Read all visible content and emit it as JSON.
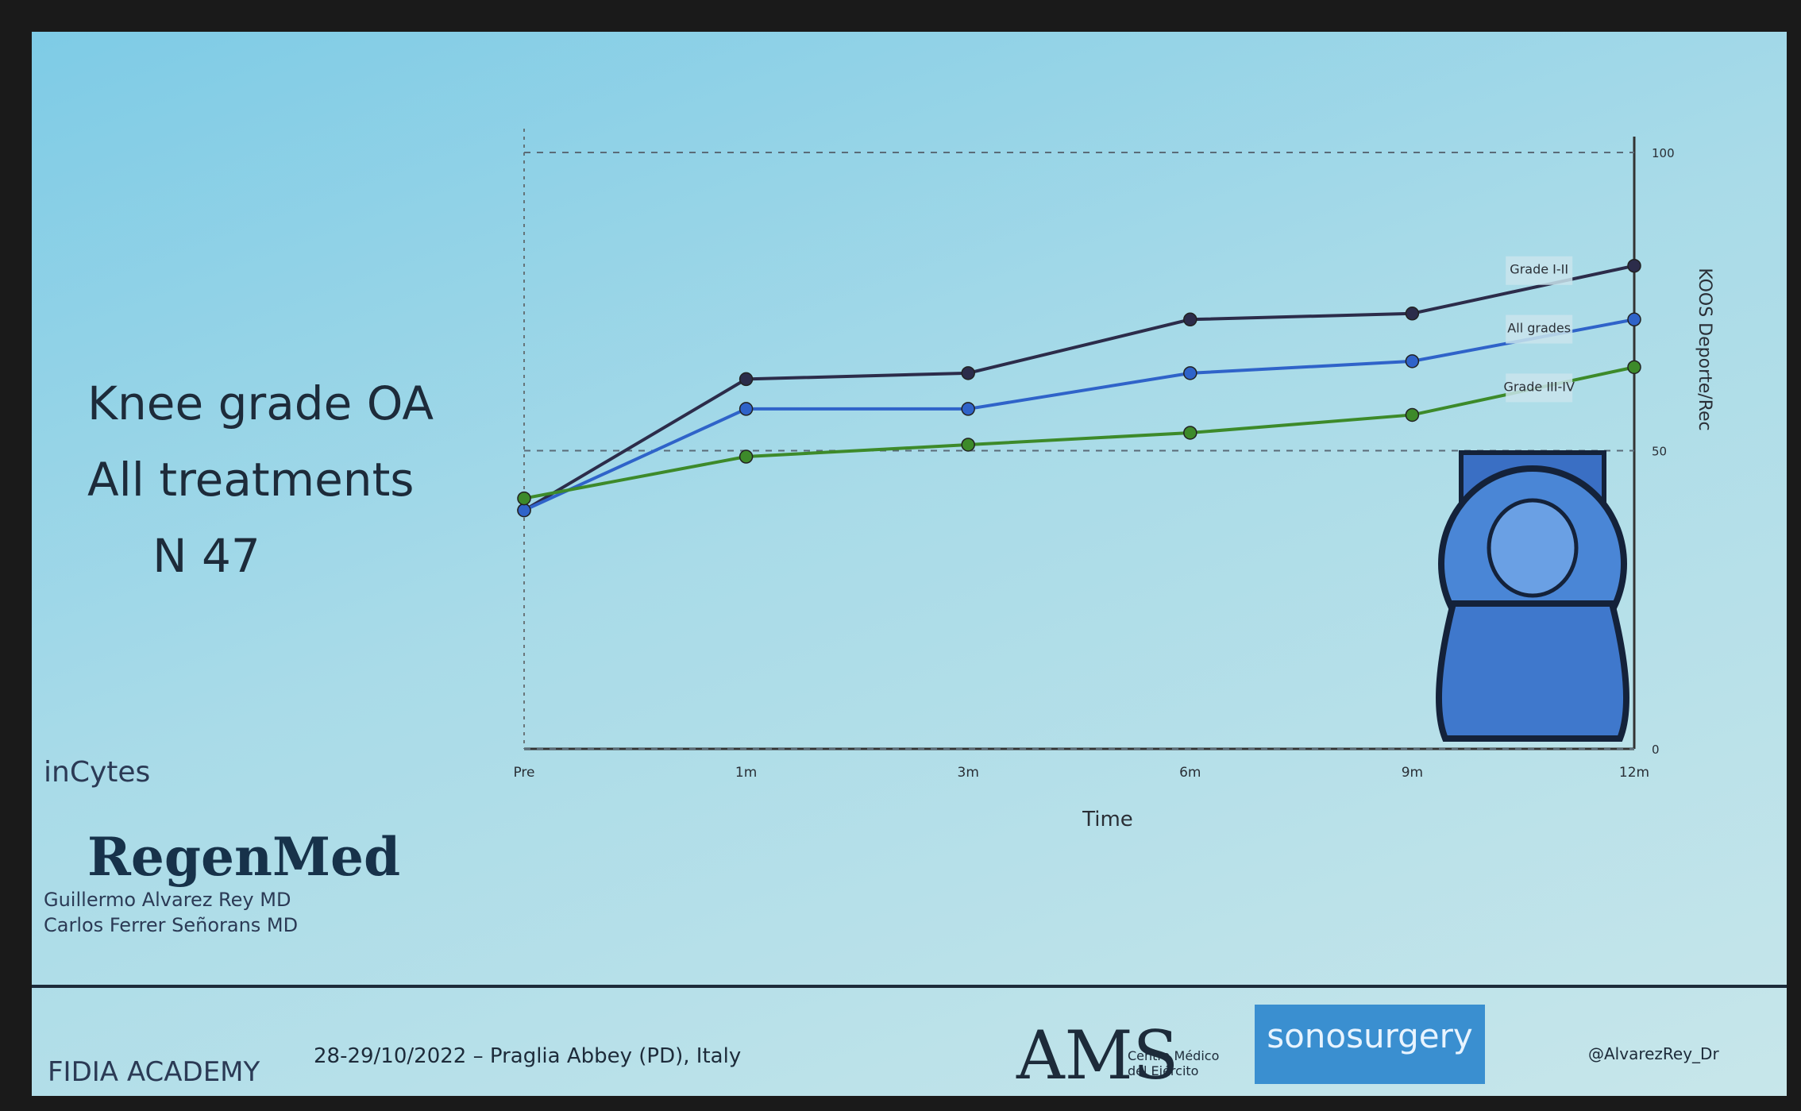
{
  "chart_data": {
    "type": "line",
    "categories": [
      "Pre",
      "1m",
      "3m",
      "6m",
      "9m",
      "12m"
    ],
    "series": [
      {
        "name": "Grade I-II",
        "color": "#2c2c4a",
        "values": [
          40,
          62,
          63,
          72,
          73,
          81
        ]
      },
      {
        "name": "All grades",
        "color": "#2f63c9",
        "values": [
          40,
          57,
          57,
          63,
          65,
          72
        ]
      },
      {
        "name": "Grade III-IV",
        "color": "#3d8a2a",
        "values": [
          42,
          49,
          51,
          53,
          56,
          64
        ]
      }
    ],
    "ylim": [
      0,
      100
    ],
    "yticks": [
      0,
      50,
      100
    ],
    "grid": true,
    "x_label": "Time",
    "y_label": "KOOS Deporte/Rec"
  },
  "slide": {
    "title_lines": [
      "Knee grade OA",
      "All treatments",
      "N 47"
    ],
    "logo_1": "inCytes",
    "logo_2": "RegenMed",
    "authors": [
      "Guillermo Alvarez Rey MD",
      "Carlos Ferrer Señorans MD"
    ],
    "footer": {
      "academy": "FIDIA ACADEMY",
      "event": "28-29/10/2022 – Praglia Abbey (PD), Italy",
      "ams": "AMS",
      "ams_sub": "Centro Médico del Ejército",
      "sonosurgery": "sonosurgery",
      "twitter": "@AlvarezRey_Dr"
    }
  }
}
